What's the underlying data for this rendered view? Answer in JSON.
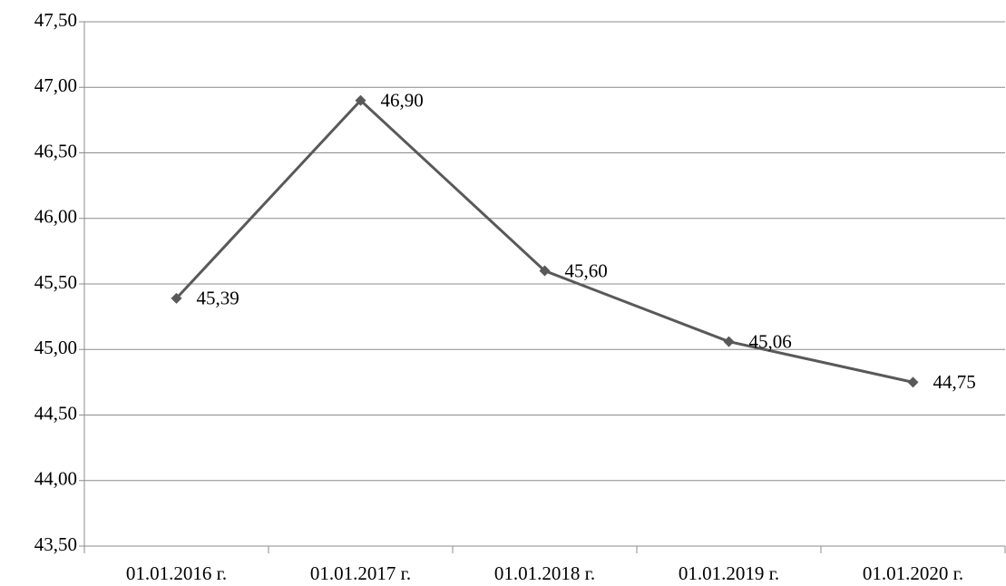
{
  "chart_data": {
    "type": "line",
    "categories": [
      "01.01.2016 г.",
      "01.01.2017 г.",
      "01.01.2018 г.",
      "01.01.2019 г.",
      "01.01.2020 г."
    ],
    "values": [
      45.39,
      46.9,
      45.6,
      45.06,
      44.75
    ],
    "value_labels": [
      "45,39",
      "46,90",
      "45,60",
      "45,06",
      "44,75"
    ],
    "color": "#595959",
    "ylim": [
      43.5,
      47.5
    ],
    "yticks": [
      {
        "value": 43.5,
        "label": "43,50"
      },
      {
        "value": 44,
        "label": "44,00"
      },
      {
        "value": 44.5,
        "label": "44,50"
      },
      {
        "value": 45,
        "label": "45,00"
      },
      {
        "value": 45.5,
        "label": "45,50"
      },
      {
        "value": 46,
        "label": "46,00"
      },
      {
        "value": 46.5,
        "label": "46,50"
      },
      {
        "value": 47,
        "label": "47,00"
      },
      {
        "value": 47.5,
        "label": "47,50"
      }
    ],
    "grid": true
  }
}
